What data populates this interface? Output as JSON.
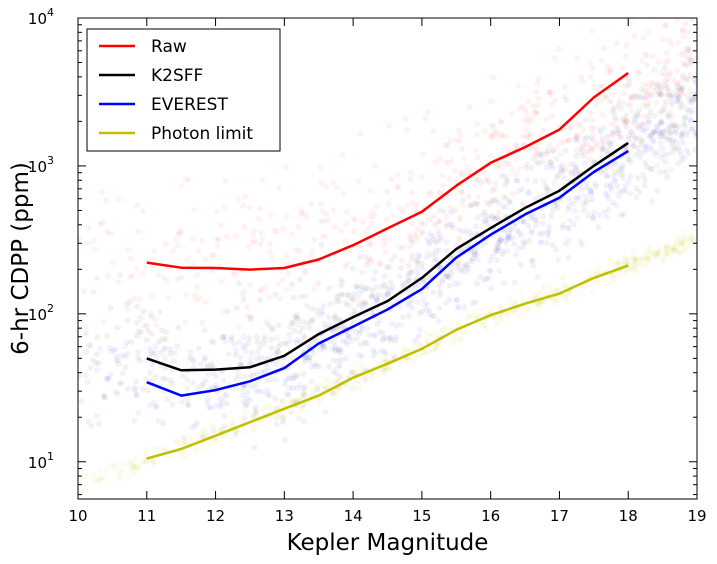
{
  "chart_data": {
    "type": "line",
    "title": "",
    "xlabel": "Kepler Magnitude",
    "ylabel": "6-hr CDPP (ppm)",
    "xlim": [
      10,
      19
    ],
    "ylim": [
      5.6,
      10000
    ],
    "yscale": "log",
    "grid": false,
    "legend_position": "top-left",
    "x_ticks": [
      "10",
      "11",
      "12",
      "13",
      "14",
      "15",
      "16",
      "17",
      "18",
      "19"
    ],
    "y_ticks": [
      {
        "value": 10,
        "base": "10",
        "exp": "1"
      },
      {
        "value": 100,
        "base": "10",
        "exp": "2"
      },
      {
        "value": 1000,
        "base": "10",
        "exp": "3"
      },
      {
        "value": 10000,
        "base": "10",
        "exp": "4"
      }
    ],
    "x": [
      11,
      11.5,
      12,
      12.5,
      13,
      13.5,
      14,
      14.5,
      15,
      15.5,
      16,
      16.5,
      17,
      17.5,
      18
    ],
    "series": [
      {
        "name": "Raw",
        "color": "#ff0000",
        "values": [
          222,
          205,
          204,
          199,
          204,
          233,
          291,
          378,
          490,
          735,
          1050,
          1340,
          1760,
          2900,
          4250
        ]
      },
      {
        "name": "K2SFF",
        "color": "#000000",
        "values": [
          50,
          41.5,
          42,
          43.5,
          52,
          73,
          95,
          122,
          175,
          275,
          380,
          520,
          680,
          1000,
          1430
        ]
      },
      {
        "name": "EVEREST",
        "color": "#0000ff",
        "values": [
          34.5,
          28,
          30.5,
          35,
          43,
          63,
          82,
          107,
          147,
          240,
          343,
          470,
          610,
          910,
          1260
        ]
      },
      {
        "name": "Photon limit",
        "color": "#bfbf00",
        "values": [
          10.5,
          12.2,
          15,
          18.5,
          22.8,
          28,
          37,
          46,
          58,
          78,
          98,
          117,
          137,
          175,
          212
        ]
      }
    ],
    "scatter_clouds": [
      {
        "series": "Raw",
        "color": "#ff0000",
        "xrange": [
          10,
          19
        ],
        "trend": [
          [
            10,
            230
          ],
          [
            12,
            215
          ],
          [
            13,
            210
          ],
          [
            14,
            300
          ],
          [
            15,
            500
          ],
          [
            16,
            1050
          ],
          [
            17,
            1800
          ],
          [
            18,
            3500
          ],
          [
            19,
            5500
          ]
        ],
        "spread_dex": 0.45
      },
      {
        "series": "K2SFF",
        "color": "#000000",
        "xrange": [
          10,
          19
        ],
        "trend": [
          [
            10,
            60
          ],
          [
            12,
            45
          ],
          [
            13,
            50
          ],
          [
            14,
            95
          ],
          [
            15,
            175
          ],
          [
            16,
            380
          ],
          [
            17,
            680
          ],
          [
            18,
            1400
          ],
          [
            19,
            2500
          ]
        ],
        "spread_dex": 0.35
      },
      {
        "series": "EVEREST",
        "color": "#0000ff",
        "xrange": [
          10,
          19
        ],
        "trend": [
          [
            10,
            40
          ],
          [
            12,
            30
          ],
          [
            13,
            43
          ],
          [
            14,
            82
          ],
          [
            15,
            147
          ],
          [
            16,
            343
          ],
          [
            17,
            610
          ],
          [
            18,
            1260
          ],
          [
            19,
            2600
          ]
        ],
        "spread_dex": 0.3
      },
      {
        "series": "Photon limit",
        "color": "#bfbf00",
        "xrange": [
          10,
          19
        ],
        "trend": [
          [
            10,
            7
          ],
          [
            12,
            15
          ],
          [
            13,
            22.8
          ],
          [
            14,
            37
          ],
          [
            15,
            58
          ],
          [
            16,
            98
          ],
          [
            17,
            137
          ],
          [
            18,
            212
          ],
          [
            19,
            330
          ]
        ],
        "spread_dex": 0.06
      }
    ]
  }
}
